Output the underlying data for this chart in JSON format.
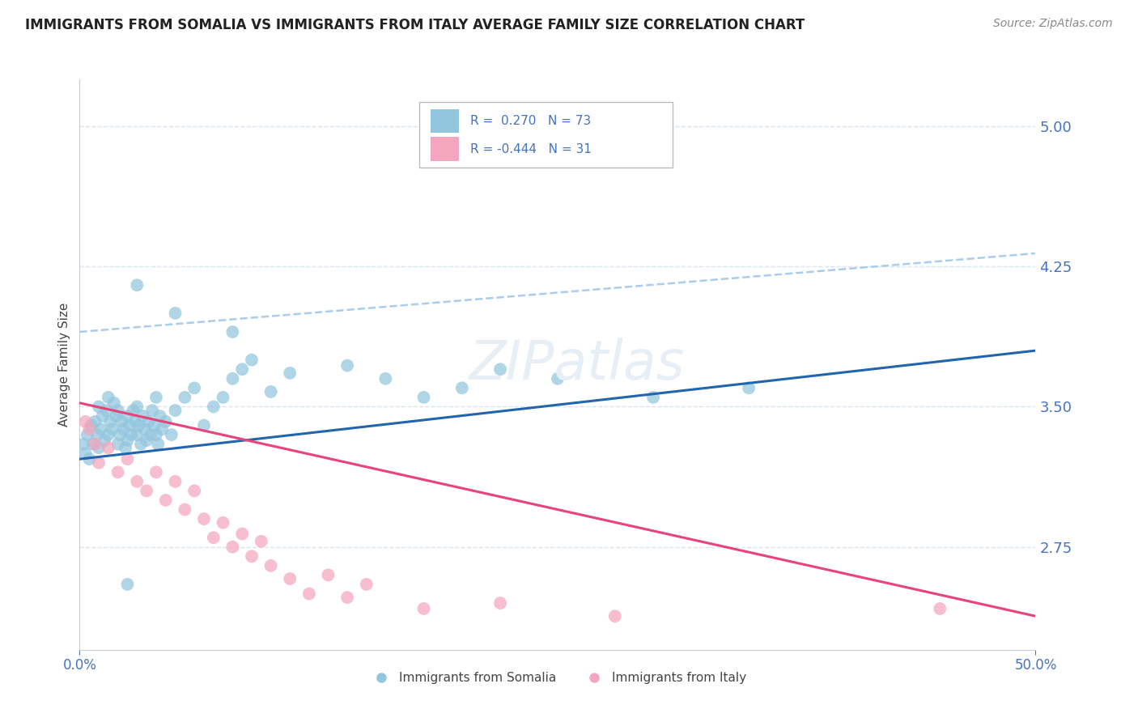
{
  "title": "IMMIGRANTS FROM SOMALIA VS IMMIGRANTS FROM ITALY AVERAGE FAMILY SIZE CORRELATION CHART",
  "source": "Source: ZipAtlas.com",
  "ylabel": "Average Family Size",
  "yticks": [
    2.75,
    3.5,
    4.25,
    5.0
  ],
  "ymin": 2.2,
  "ymax": 5.25,
  "xmin": 0.0,
  "xmax": 50.0,
  "somalia_R": 0.27,
  "somalia_N": 73,
  "italy_R": -0.444,
  "italy_N": 31,
  "somalia_color": "#92C5DE",
  "italy_color": "#F4A6BE",
  "somalia_line_color": "#2166AC",
  "italy_line_color": "#E8437A",
  "dashed_line_color": "#AACCEE",
  "title_fontsize": 12,
  "source_fontsize": 10,
  "axis_label_color": "#4472C4",
  "grid_color": "#D8E4F0",
  "background_color": "#FFFFFF",
  "somalia_line_x0": 0.0,
  "somalia_line_y0": 3.22,
  "somalia_line_x1": 50.0,
  "somalia_line_y1": 3.8,
  "italy_line_x0": 0.0,
  "italy_line_y0": 3.52,
  "italy_line_x1": 50.0,
  "italy_line_y1": 2.38,
  "dashed_line_x0": 0.0,
  "dashed_line_y0": 3.9,
  "dashed_line_x1": 50.0,
  "dashed_line_y1": 4.32,
  "somalia_points": [
    [
      0.2,
      3.3
    ],
    [
      0.3,
      3.25
    ],
    [
      0.4,
      3.35
    ],
    [
      0.5,
      3.22
    ],
    [
      0.6,
      3.4
    ],
    [
      0.7,
      3.3
    ],
    [
      0.8,
      3.42
    ],
    [
      0.9,
      3.35
    ],
    [
      1.0,
      3.5
    ],
    [
      1.0,
      3.28
    ],
    [
      1.1,
      3.38
    ],
    [
      1.2,
      3.45
    ],
    [
      1.3,
      3.32
    ],
    [
      1.4,
      3.48
    ],
    [
      1.5,
      3.35
    ],
    [
      1.5,
      3.55
    ],
    [
      1.6,
      3.42
    ],
    [
      1.7,
      3.38
    ],
    [
      1.8,
      3.52
    ],
    [
      1.9,
      3.45
    ],
    [
      2.0,
      3.3
    ],
    [
      2.0,
      3.48
    ],
    [
      2.1,
      3.35
    ],
    [
      2.2,
      3.42
    ],
    [
      2.3,
      3.38
    ],
    [
      2.4,
      3.28
    ],
    [
      2.5,
      3.45
    ],
    [
      2.5,
      3.32
    ],
    [
      2.6,
      3.4
    ],
    [
      2.7,
      3.35
    ],
    [
      2.8,
      3.48
    ],
    [
      2.9,
      3.42
    ],
    [
      3.0,
      3.35
    ],
    [
      3.0,
      3.5
    ],
    [
      3.1,
      3.4
    ],
    [
      3.2,
      3.3
    ],
    [
      3.3,
      3.45
    ],
    [
      3.4,
      3.38
    ],
    [
      3.5,
      3.32
    ],
    [
      3.6,
      3.42
    ],
    [
      3.7,
      3.35
    ],
    [
      3.8,
      3.48
    ],
    [
      3.9,
      3.4
    ],
    [
      4.0,
      3.35
    ],
    [
      4.0,
      3.55
    ],
    [
      4.1,
      3.3
    ],
    [
      4.2,
      3.45
    ],
    [
      4.3,
      3.38
    ],
    [
      4.5,
      3.42
    ],
    [
      4.8,
      3.35
    ],
    [
      5.0,
      3.48
    ],
    [
      5.5,
      3.55
    ],
    [
      6.0,
      3.6
    ],
    [
      6.5,
      3.4
    ],
    [
      7.0,
      3.5
    ],
    [
      7.5,
      3.55
    ],
    [
      8.0,
      3.65
    ],
    [
      8.5,
      3.7
    ],
    [
      9.0,
      3.75
    ],
    [
      10.0,
      3.58
    ],
    [
      3.0,
      4.15
    ],
    [
      5.0,
      4.0
    ],
    [
      8.0,
      3.9
    ],
    [
      11.0,
      3.68
    ],
    [
      14.0,
      3.72
    ],
    [
      16.0,
      3.65
    ],
    [
      18.0,
      3.55
    ],
    [
      20.0,
      3.6
    ],
    [
      22.0,
      3.7
    ],
    [
      25.0,
      3.65
    ],
    [
      30.0,
      3.55
    ],
    [
      35.0,
      3.6
    ],
    [
      2.5,
      2.55
    ]
  ],
  "italy_points": [
    [
      0.3,
      3.42
    ],
    [
      0.5,
      3.38
    ],
    [
      0.8,
      3.3
    ],
    [
      1.0,
      3.2
    ],
    [
      1.5,
      3.28
    ],
    [
      2.0,
      3.15
    ],
    [
      2.5,
      3.22
    ],
    [
      3.0,
      3.1
    ],
    [
      3.5,
      3.05
    ],
    [
      4.0,
      3.15
    ],
    [
      4.5,
      3.0
    ],
    [
      5.0,
      3.1
    ],
    [
      5.5,
      2.95
    ],
    [
      6.0,
      3.05
    ],
    [
      6.5,
      2.9
    ],
    [
      7.0,
      2.8
    ],
    [
      7.5,
      2.88
    ],
    [
      8.0,
      2.75
    ],
    [
      8.5,
      2.82
    ],
    [
      9.0,
      2.7
    ],
    [
      9.5,
      2.78
    ],
    [
      10.0,
      2.65
    ],
    [
      11.0,
      2.58
    ],
    [
      12.0,
      2.5
    ],
    [
      13.0,
      2.6
    ],
    [
      14.0,
      2.48
    ],
    [
      15.0,
      2.55
    ],
    [
      18.0,
      2.42
    ],
    [
      22.0,
      2.45
    ],
    [
      28.0,
      2.38
    ],
    [
      45.0,
      2.42
    ]
  ]
}
